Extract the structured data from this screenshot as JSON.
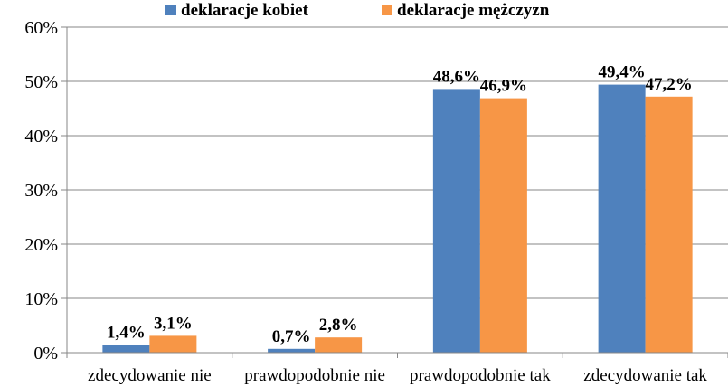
{
  "chart_data": {
    "type": "bar",
    "title": "",
    "xlabel": "",
    "ylabel": "",
    "categories": [
      "zdecydowanie nie",
      "prawdopodobnie nie",
      "prawdopodobnie tak",
      "zdecydowanie tak"
    ],
    "series": [
      {
        "name": "deklaracje kobiet",
        "color": "#4F81BD",
        "values": [
          1.4,
          0.7,
          48.6,
          49.4
        ],
        "labels": [
          "1,4%",
          "0,7%",
          "48,6%",
          "49,4%"
        ]
      },
      {
        "name": "deklaracje mężczyzn",
        "color": "#F79646",
        "values": [
          3.1,
          2.8,
          46.9,
          47.2
        ],
        "labels": [
          "3,1%",
          "2,8%",
          "46,9%",
          "47,2%"
        ]
      }
    ],
    "ylim": [
      0,
      60
    ],
    "yticks": [
      0,
      10,
      20,
      30,
      40,
      50,
      60
    ],
    "ytick_labels": [
      "0%",
      "10%",
      "20%",
      "30%",
      "40%",
      "50%",
      "60%"
    ],
    "grid": true,
    "legend_position": "top"
  }
}
